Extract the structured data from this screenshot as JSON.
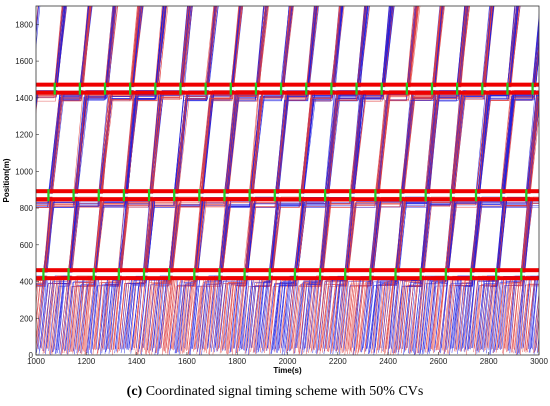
{
  "chart_data": {
    "type": "line",
    "description_kind": "time-space trajectory diagram",
    "xlabel": "Time(s)",
    "ylabel": "Position(m)",
    "xlim": [
      1000,
      3000
    ],
    "ylim": [
      0,
      1900
    ],
    "xticks": [
      1000,
      1200,
      1400,
      1600,
      1800,
      2000,
      2200,
      2400,
      2600,
      2800,
      3000
    ],
    "yticks": [
      0,
      200,
      400,
      600,
      800,
      1000,
      1200,
      1400,
      1600,
      1800
    ],
    "grid": false,
    "colors": {
      "connected_vehicles": "#2020e0",
      "regular_vehicles": "#e04040",
      "red_signal": "#ee0000",
      "green_signal": "#22cc22"
    },
    "signals": [
      {
        "position": 440,
        "cycle": 100,
        "green_start_offset": 25,
        "green_duration": 20
      },
      {
        "position": 870,
        "cycle": 100,
        "green_start_offset": 45,
        "green_duration": 20
      },
      {
        "position": 1450,
        "cycle": 100,
        "green_start_offset": 70,
        "green_duration": 20
      }
    ],
    "vehicle_speed_mps": 13,
    "cycle_s": 100
  },
  "caption": {
    "prefix": "(c)",
    "text": " Coordinated signal timing scheme with 50% CVs"
  }
}
